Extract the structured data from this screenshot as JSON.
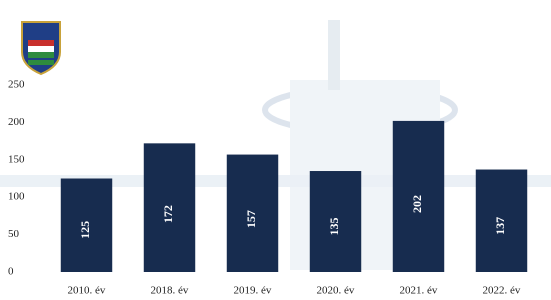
{
  "chart_data": {
    "type": "bar",
    "categories": [
      "2010. év",
      "2018. év",
      "2019. év",
      "2020. év",
      "2021. év",
      "2022. év"
    ],
    "values": [
      125,
      172,
      157,
      135,
      202,
      137
    ],
    "color": "#172c4f",
    "ylim": [
      0,
      250
    ],
    "yticks": [
      0,
      50,
      100,
      150,
      200,
      250
    ],
    "grid": false
  }
}
